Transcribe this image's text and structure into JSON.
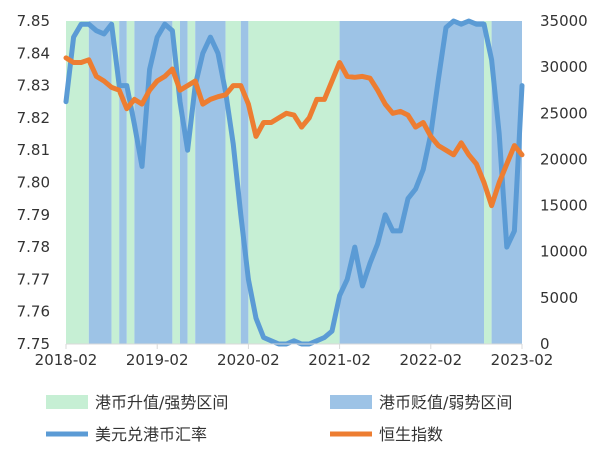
{
  "colors": {
    "hkd_strong": "#c6efd4",
    "hkd_weak": "#9dc3e6",
    "usdhkd": "#5b9bd5",
    "hsi": "#ed7d31"
  },
  "legend": {
    "strong_label": "港币升值/强势区间",
    "weak_label": "港币贬值/弱势区间",
    "usdhkd_label": "美元兑港币汇率",
    "hsi_label": "恒生指数"
  },
  "chart_data": {
    "type": "line",
    "x_axis": {
      "range": [
        "2018-02",
        "2023-02"
      ],
      "ticks": [
        "2018-02",
        "2019-02",
        "2020-02",
        "2021-02",
        "2022-02",
        "2023-02"
      ]
    },
    "y_left": {
      "range": [
        7.75,
        7.85
      ],
      "ticks": [
        "7.75",
        "7.76",
        "7.77",
        "7.78",
        "7.79",
        "7.80",
        "7.81",
        "7.82",
        "7.83",
        "7.84",
        "7.85"
      ]
    },
    "y_right": {
      "range": [
        0,
        35000
      ],
      "ticks": [
        "0",
        "5000",
        "10000",
        "15000",
        "20000",
        "25000",
        "30000",
        "35000"
      ]
    },
    "grid": false,
    "legend_position": "bottom",
    "regions": [
      {
        "start": "2018-02",
        "end": "2018-02",
        "class": "weak"
      },
      {
        "start": "2018-02",
        "end": "2018-05",
        "class": "strong"
      },
      {
        "start": "2018-05",
        "end": "2018-08",
        "class": "weak"
      },
      {
        "start": "2018-08",
        "end": "2018-09",
        "class": "strong"
      },
      {
        "start": "2018-09",
        "end": "2018-10",
        "class": "weak"
      },
      {
        "start": "2018-10",
        "end": "2018-11",
        "class": "strong"
      },
      {
        "start": "2018-11",
        "end": "2019-04",
        "class": "weak"
      },
      {
        "start": "2019-04",
        "end": "2019-05",
        "class": "strong"
      },
      {
        "start": "2019-05",
        "end": "2019-06",
        "class": "weak"
      },
      {
        "start": "2019-06",
        "end": "2019-07",
        "class": "strong"
      },
      {
        "start": "2019-07",
        "end": "2019-11",
        "class": "weak"
      },
      {
        "start": "2019-11",
        "end": "2020-01",
        "class": "strong"
      },
      {
        "start": "2020-01",
        "end": "2020-02",
        "class": "weak"
      },
      {
        "start": "2020-02",
        "end": "2021-02",
        "class": "strong"
      },
      {
        "start": "2021-02",
        "end": "2022-09",
        "class": "weak"
      },
      {
        "start": "2022-09",
        "end": "2022-10",
        "class": "strong"
      },
      {
        "start": "2022-10",
        "end": "2023-02",
        "class": "weak"
      }
    ],
    "series": [
      {
        "name": "美元兑港币汇率",
        "axis": "left",
        "x": [
          "2018-02",
          "2018-03",
          "2018-04",
          "2018-05",
          "2018-06",
          "2018-07",
          "2018-08",
          "2018-09",
          "2018-10",
          "2018-11",
          "2018-12",
          "2019-01",
          "2019-02",
          "2019-03",
          "2019-04",
          "2019-05",
          "2019-06",
          "2019-07",
          "2019-08",
          "2019-09",
          "2019-10",
          "2019-11",
          "2019-12",
          "2020-01",
          "2020-02",
          "2020-03",
          "2020-04",
          "2020-05",
          "2020-06",
          "2020-07",
          "2020-08",
          "2020-09",
          "2020-10",
          "2020-11",
          "2020-12",
          "2021-01",
          "2021-02",
          "2021-03",
          "2021-04",
          "2021-05",
          "2021-06",
          "2021-07",
          "2021-08",
          "2021-09",
          "2021-10",
          "2021-11",
          "2021-12",
          "2022-01",
          "2022-02",
          "2022-03",
          "2022-04",
          "2022-05",
          "2022-06",
          "2022-07",
          "2022-08",
          "2022-09",
          "2022-10",
          "2022-11",
          "2022-12",
          "2023-01",
          "2023-02"
        ],
        "values": [
          7.825,
          7.845,
          7.849,
          7.849,
          7.847,
          7.846,
          7.849,
          7.83,
          7.83,
          7.818,
          7.805,
          7.835,
          7.845,
          7.849,
          7.847,
          7.825,
          7.81,
          7.83,
          7.84,
          7.845,
          7.84,
          7.828,
          7.812,
          7.79,
          7.77,
          7.758,
          7.752,
          7.751,
          7.75,
          7.75,
          7.751,
          7.75,
          7.75,
          7.751,
          7.752,
          7.754,
          7.765,
          7.77,
          7.78,
          7.768,
          7.775,
          7.781,
          7.79,
          7.785,
          7.785,
          7.795,
          7.798,
          7.804,
          7.815,
          7.832,
          7.848,
          7.85,
          7.849,
          7.85,
          7.849,
          7.849,
          7.838,
          7.815,
          7.78,
          7.785,
          7.83
        ]
      },
      {
        "name": "恒生指数",
        "axis": "right",
        "x": [
          "2018-02",
          "2018-03",
          "2018-04",
          "2018-05",
          "2018-06",
          "2018-07",
          "2018-08",
          "2018-09",
          "2018-10",
          "2018-11",
          "2018-12",
          "2019-01",
          "2019-02",
          "2019-03",
          "2019-04",
          "2019-05",
          "2019-06",
          "2019-07",
          "2019-08",
          "2019-09",
          "2019-10",
          "2019-11",
          "2019-12",
          "2020-01",
          "2020-02",
          "2020-03",
          "2020-04",
          "2020-05",
          "2020-06",
          "2020-07",
          "2020-08",
          "2020-09",
          "2020-10",
          "2020-11",
          "2020-12",
          "2021-01",
          "2021-02",
          "2021-03",
          "2021-04",
          "2021-05",
          "2021-06",
          "2021-07",
          "2021-08",
          "2021-09",
          "2021-10",
          "2021-11",
          "2021-12",
          "2022-01",
          "2022-02",
          "2022-03",
          "2022-04",
          "2022-05",
          "2022-06",
          "2022-07",
          "2022-08",
          "2022-09",
          "2022-10",
          "2022-11",
          "2022-12",
          "2023-01",
          "2023-02"
        ],
        "values": [
          31000,
          30500,
          30500,
          30800,
          29000,
          28500,
          27800,
          27500,
          25500,
          26500,
          26000,
          27500,
          28500,
          29000,
          29800,
          27500,
          28000,
          28500,
          26000,
          26500,
          26800,
          27000,
          28000,
          28000,
          26000,
          22500,
          24000,
          24000,
          24500,
          25000,
          24800,
          23500,
          24500,
          26500,
          26500,
          28500,
          30500,
          29000,
          28900,
          29000,
          28800,
          27500,
          26000,
          25000,
          25200,
          24800,
          23500,
          24000,
          22500,
          21500,
          21000,
          20500,
          21800,
          20500,
          19500,
          17500,
          15000,
          17500,
          19500,
          21500,
          20500
        ]
      }
    ]
  }
}
